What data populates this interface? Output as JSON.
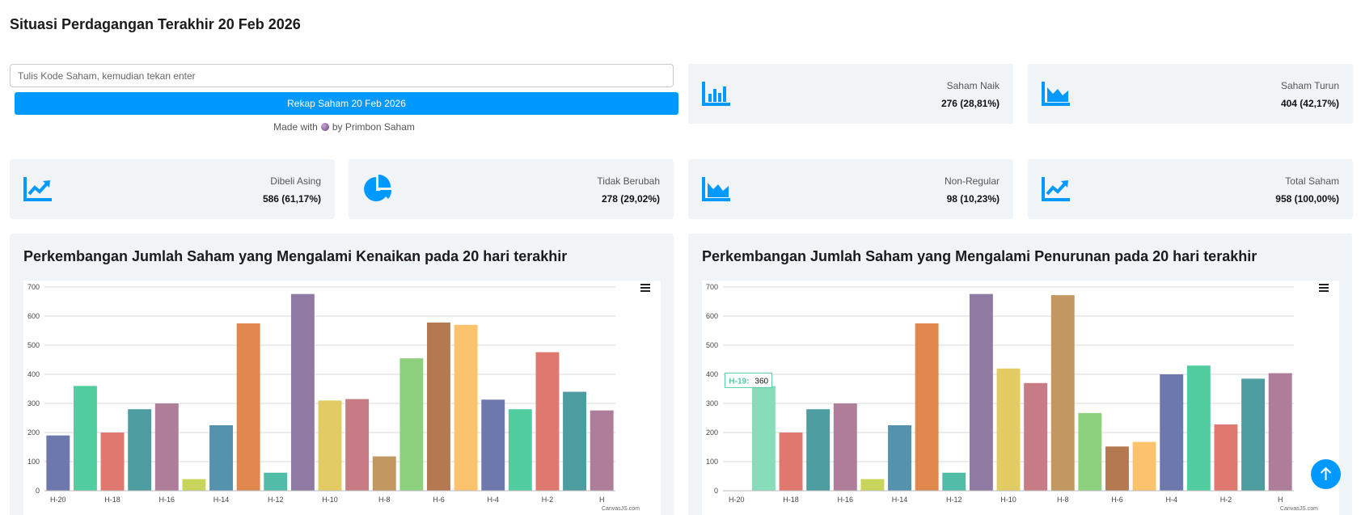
{
  "page": {
    "title": "Situasi Perdagangan Terakhir 20 Feb 2026"
  },
  "search": {
    "placeholder": "Tulis Kode Saham, kemudian tekan enter",
    "value": ""
  },
  "rekap_button": {
    "label": "Rekap Saham 20 Feb 2026"
  },
  "credits": {
    "prefix": "Made with",
    "suffix": "by Primbon Saham"
  },
  "stats": [
    {
      "label": "Saham Naik",
      "value": "276 (28,81%)",
      "icon": "bar-chart-icon"
    },
    {
      "label": "Saham Turun",
      "value": "404 (42,17%)",
      "icon": "area-chart-icon"
    },
    {
      "label": "Dibeli Asing",
      "value": "586 (61,17%)",
      "icon": "trend-up-icon"
    },
    {
      "label": "Tidak Berubah",
      "value": "278 (29,02%)",
      "icon": "pie-chart-icon"
    },
    {
      "label": "Non-Regular",
      "value": "98 (10,23%)",
      "icon": "area-chart-icon"
    },
    {
      "label": "Total Saham",
      "value": "958 (100,00%)",
      "icon": "trend-up-icon"
    }
  ],
  "accent_color": "#0099ff",
  "watermark": "CanvasJS.com",
  "tooltip": {
    "label": "H-19:",
    "value": "360"
  },
  "chart_data": [
    {
      "type": "bar",
      "title": "Perkembangan Jumlah Saham yang Mengalami Kenaikan pada 20 hari terakhir",
      "xlabel": "",
      "ylabel": "",
      "ylim": [
        0,
        700
      ],
      "yticks": [
        0,
        100,
        200,
        300,
        400,
        500,
        600,
        700
      ],
      "categories": [
        "H-20",
        "H-19",
        "H-18",
        "H-17",
        "H-16",
        "H-15",
        "H-14",
        "H-13",
        "H-12",
        "H-11",
        "H-10",
        "H-9",
        "H-8",
        "H-7",
        "H-6",
        "H-5",
        "H-4",
        "H-3",
        "H-2",
        "H-1",
        "H"
      ],
      "tick_labels": [
        "H-20",
        "H-18",
        "H-16",
        "H-14",
        "H-12",
        "H-10",
        "H-8",
        "H-6",
        "H-4",
        "H-2",
        "H"
      ],
      "values": [
        190,
        360,
        200,
        280,
        300,
        40,
        225,
        575,
        62,
        676,
        310,
        315,
        118,
        455,
        578,
        570,
        313,
        280,
        476,
        340,
        276
      ],
      "colors": [
        "#6d78ad",
        "#51cda0",
        "#df7970",
        "#4c9ca0",
        "#ae7d99",
        "#c9d45c",
        "#5592ad",
        "#df874d",
        "#52bca8",
        "#8e7aa3",
        "#e3cb64",
        "#c77b85",
        "#c39762",
        "#8dd17e",
        "#b57952",
        "#fcc26c",
        "#6d78ad",
        "#51cda0",
        "#df7970",
        "#4c9ca0",
        "#ae7d99"
      ],
      "grid": true
    },
    {
      "type": "bar",
      "title": "Perkembangan Jumlah Saham yang Mengalami Penurunan pada 20 hari terakhir",
      "xlabel": "",
      "ylabel": "",
      "ylim": [
        0,
        700
      ],
      "yticks": [
        0,
        100,
        200,
        300,
        400,
        500,
        600,
        700
      ],
      "categories": [
        "H-20",
        "H-19",
        "H-18",
        "H-17",
        "H-16",
        "H-15",
        "H-14",
        "H-13",
        "H-12",
        "H-11",
        "H-10",
        "H-9",
        "H-8",
        "H-7",
        "H-6",
        "H-5",
        "H-4",
        "H-3",
        "H-2",
        "H-1",
        "H"
      ],
      "tick_labels": [
        "H-20",
        "H-18",
        "H-16",
        "H-14",
        "H-12",
        "H-10",
        "H-8",
        "H-6",
        "H-4",
        "H-2",
        "H"
      ],
      "values": [
        0,
        360,
        200,
        280,
        300,
        40,
        225,
        575,
        62,
        676,
        420,
        370,
        672,
        267,
        152,
        168,
        400,
        430,
        228,
        385,
        404
      ],
      "colors": [
        "#6d78ad",
        "#87dcb9",
        "#df7970",
        "#4c9ca0",
        "#ae7d99",
        "#c9d45c",
        "#5592ad",
        "#df874d",
        "#52bca8",
        "#8e7aa3",
        "#e3cb64",
        "#c77b85",
        "#c39762",
        "#8dd17e",
        "#b57952",
        "#fcc26c",
        "#6d78ad",
        "#51cda0",
        "#df7970",
        "#4c9ca0",
        "#ae7d99"
      ],
      "grid": true
    }
  ]
}
